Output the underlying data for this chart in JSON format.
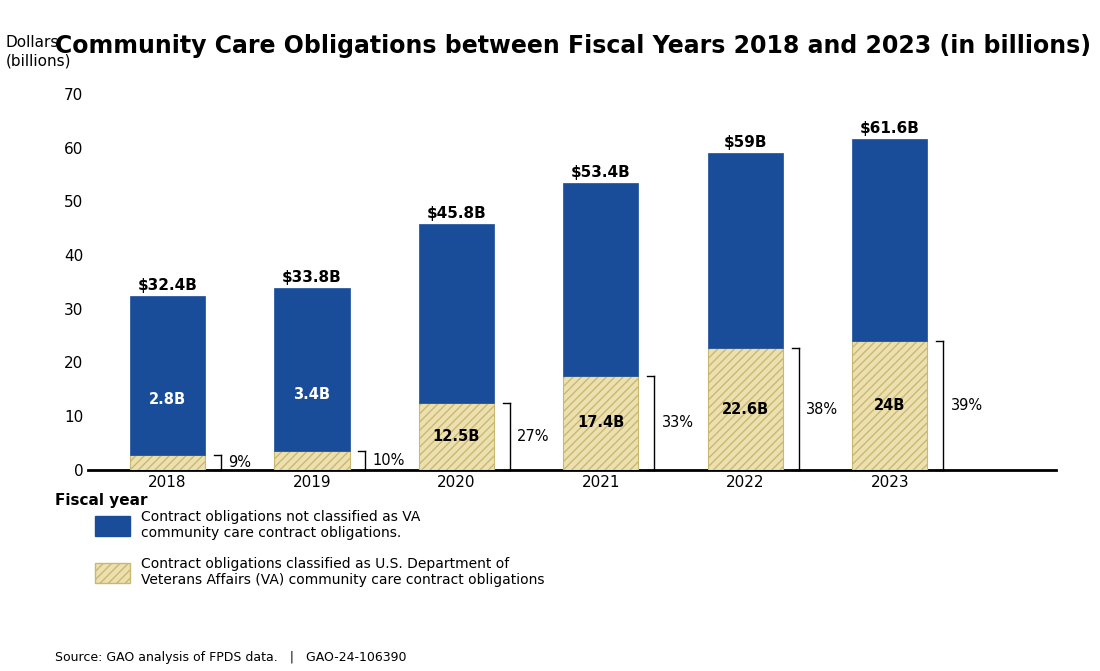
{
  "title": "Community Care Obligations between Fiscal Years 2018 and 2023 (in billions)",
  "ylabel": "Dollars\n(billions)",
  "xlabel": "Fiscal year",
  "years": [
    "2018",
    "2019",
    "2020",
    "2021",
    "2022",
    "2023"
  ],
  "blue_values": [
    29.6,
    30.4,
    33.3,
    36.0,
    36.4,
    37.6
  ],
  "hatch_values": [
    2.8,
    3.4,
    12.5,
    17.4,
    22.6,
    24.0
  ],
  "totals": [
    "$32.4B",
    "$33.8B",
    "$45.8B",
    "$53.4B",
    "$59B",
    "$61.6B"
  ],
  "hatch_labels": [
    "2.8B",
    "3.4B",
    "12.5B",
    "17.4B",
    "22.6B",
    "24B"
  ],
  "pct_labels": [
    "9%",
    "10%",
    "27%",
    "33%",
    "38%",
    "39%"
  ],
  "blue_color": "#1A4D99",
  "hatch_facecolor": "#EDE0B0",
  "hatch_edgecolor": "#C8B870",
  "hatch_pattern": "////",
  "ylim": [
    0,
    75
  ],
  "yticks": [
    0,
    10,
    20,
    30,
    40,
    50,
    60,
    70
  ],
  "legend1_label": "Contract obligations not classified as VA\ncommunity care contract obligations.",
  "legend2_label": "Contract obligations classified as U.S. Department of\nVeterans Affairs (VA) community care contract obligations",
  "source_text": "Source: GAO analysis of FPDS data.   |   GAO-24-106390",
  "bar_width": 0.52,
  "title_fontsize": 17,
  "axis_label_fontsize": 11,
  "tick_fontsize": 11,
  "annotation_fontsize": 10.5,
  "total_label_fontsize": 11
}
